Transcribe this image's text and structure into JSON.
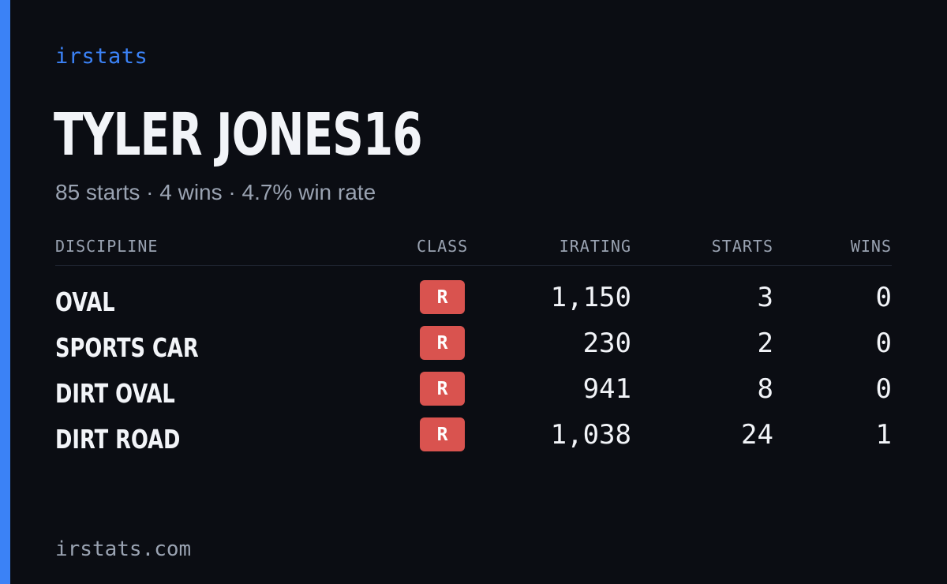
{
  "brand": "irstats",
  "driver": {
    "name": "TYLER JONES16",
    "summary": "85 starts · 4 wins · 4.7% win rate"
  },
  "table": {
    "headers": {
      "discipline": "DISCIPLINE",
      "class": "CLASS",
      "irating": "IRATING",
      "starts": "STARTS",
      "wins": "WINS"
    },
    "rows": [
      {
        "discipline": "OVAL",
        "class": "R",
        "irating": "1,150",
        "starts": "3",
        "wins": "0"
      },
      {
        "discipline": "SPORTS CAR",
        "class": "R",
        "irating": "230",
        "starts": "2",
        "wins": "0"
      },
      {
        "discipline": "DIRT OVAL",
        "class": "R",
        "irating": "941",
        "starts": "8",
        "wins": "0"
      },
      {
        "discipline": "DIRT ROAD",
        "class": "R",
        "irating": "1,038",
        "starts": "24",
        "wins": "1"
      }
    ]
  },
  "footer": "irstats.com",
  "colors": {
    "background": "#0b0d13",
    "accent": "#3b82f6",
    "class_badge_r": "#d9534f",
    "text_primary": "#f2f4f8",
    "text_muted": "#9aa3b2"
  }
}
